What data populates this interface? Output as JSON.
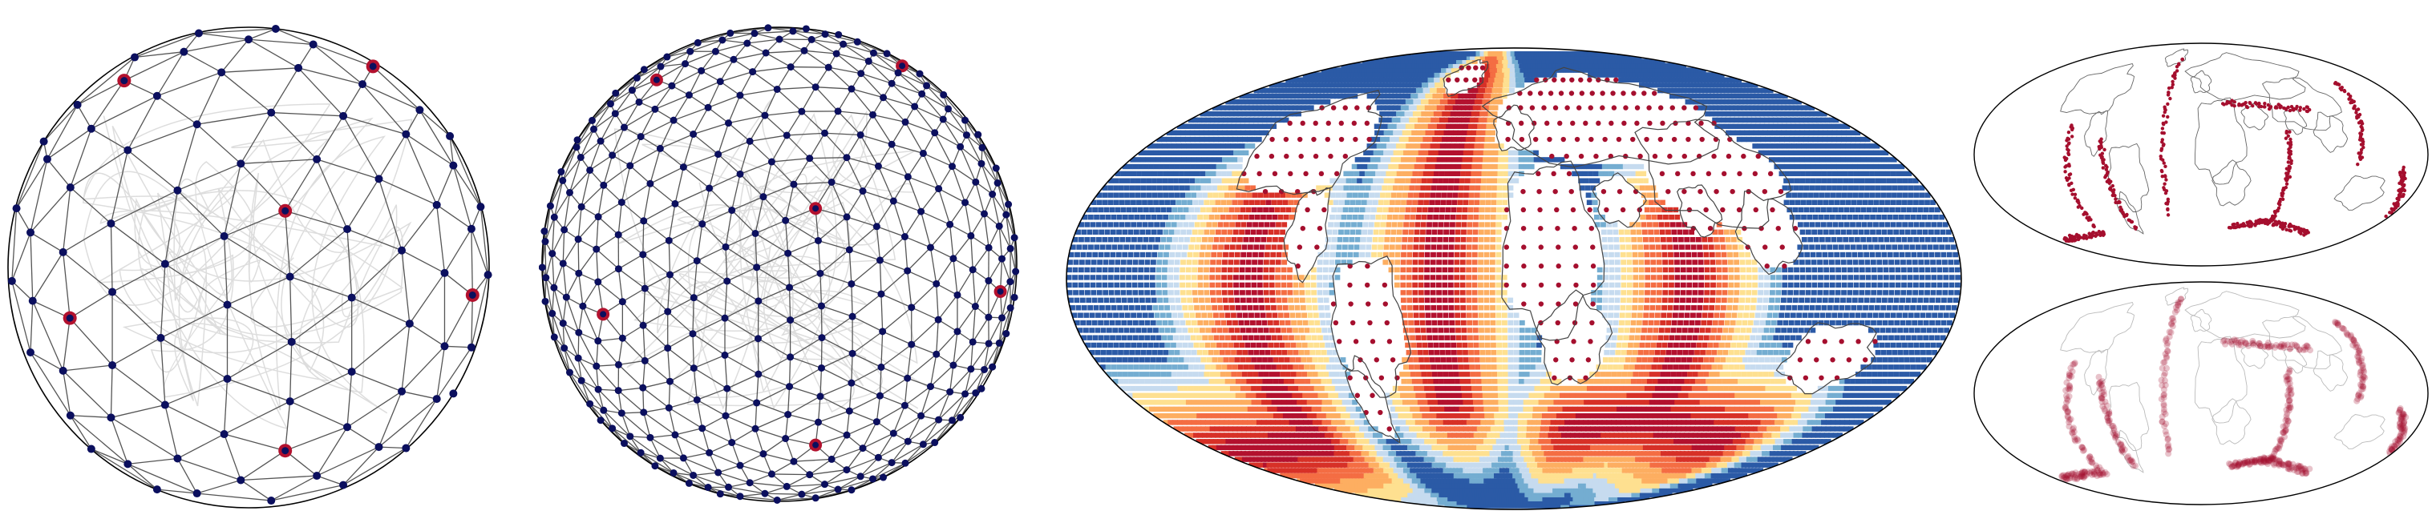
{
  "figure": {
    "panels": [
      {
        "id": "globe-coarse",
        "kind": "icosahedral-mesh",
        "subdivision": 3,
        "highlight_count": 12
      },
      {
        "id": "globe-fine",
        "kind": "icosahedral-mesh",
        "subdivision": 5,
        "highlight_count": 12
      },
      {
        "id": "ocean-age-map",
        "kind": "mollweide-field-map"
      },
      {
        "id": "plate-boundaries-top",
        "kind": "mollweide-boundary-points"
      },
      {
        "id": "plate-boundaries-bottom",
        "kind": "mollweide-boundary-density"
      }
    ],
    "colors": {
      "node": "#0b0f5e",
      "highlight_node": "#b3112e",
      "mesh_line": "#555555",
      "coast_line": "#444444",
      "outline": "#000000",
      "field_scale": [
        "#2b5aa6",
        "#74add1",
        "#c6dbef",
        "#fee090",
        "#fdae61",
        "#f46d43",
        "#d73027",
        "#b3112e"
      ],
      "point": "#a50f2e"
    }
  }
}
